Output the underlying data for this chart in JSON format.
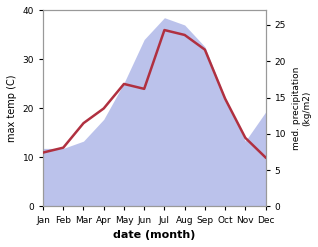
{
  "months": [
    "Jan",
    "Feb",
    "Mar",
    "Apr",
    "May",
    "Jun",
    "Jul",
    "Aug",
    "Sep",
    "Oct",
    "Nov",
    "Dec"
  ],
  "temp": [
    11,
    12,
    17,
    20,
    25,
    24,
    36,
    35,
    32,
    22,
    14,
    10
  ],
  "precip": [
    8,
    8,
    9,
    12,
    17,
    23,
    26,
    25,
    22,
    15,
    9,
    13
  ],
  "temp_color": "#b03040",
  "precip_color": "#b0b8e8",
  "ylabel_left": "max temp (C)",
  "ylabel_right": "med. precipitation\n(kg/m2)",
  "xlabel": "date (month)",
  "ylim_left": [
    0,
    40
  ],
  "ylim_right": [
    0,
    27
  ],
  "yticks_left": [
    0,
    10,
    20,
    30,
    40
  ],
  "yticks_right": [
    0,
    5,
    10,
    15,
    20,
    25
  ],
  "bg_color": "#ffffff"
}
